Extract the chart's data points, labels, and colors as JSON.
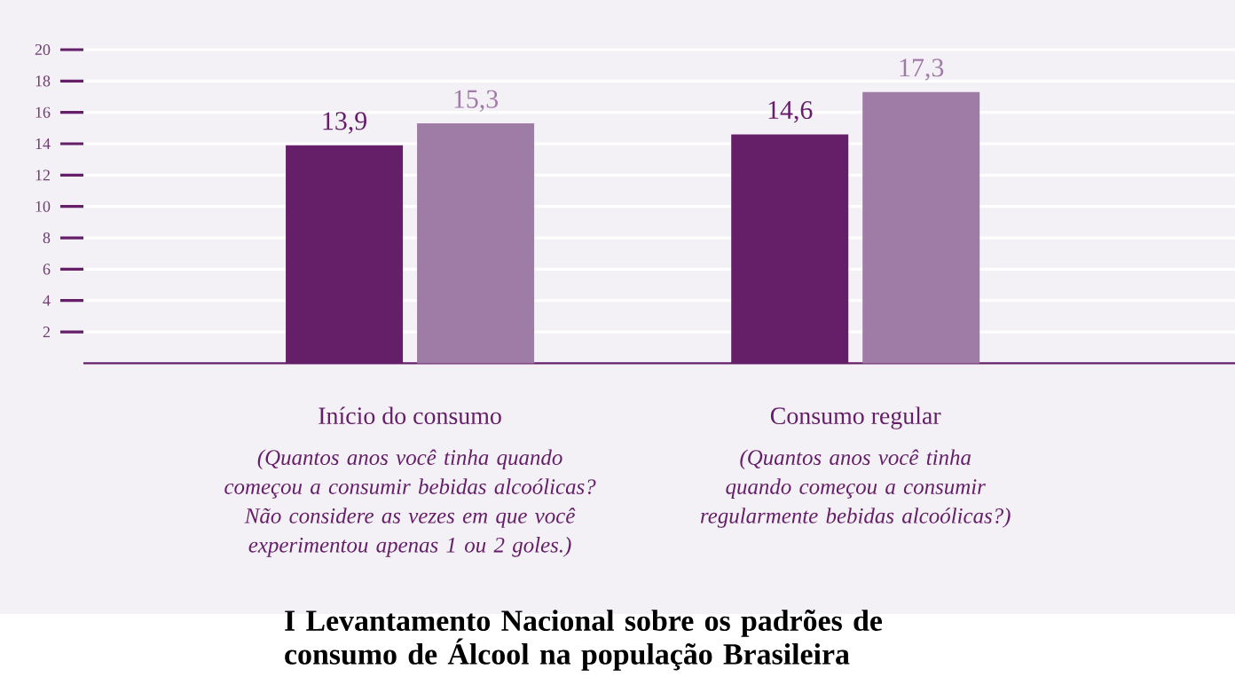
{
  "chart_data": {
    "type": "bar",
    "title": "I Levantamento Nacional sobre os padrões de consumo de Álcool na população Brasileira",
    "categories": [
      "Início do consumo",
      "Consumo regular"
    ],
    "series": [
      {
        "color": "#651f69",
        "values": [
          13.9,
          14.6
        ],
        "value_labels": [
          "13,9",
          "14,6"
        ]
      },
      {
        "color": "#9f7ca6",
        "values": [
          15.3,
          17.3
        ],
        "value_labels": [
          "15,3",
          "17,3"
        ]
      }
    ],
    "ylim": [
      0,
      20
    ],
    "yticks": [
      2,
      4,
      6,
      8,
      10,
      12,
      14,
      16,
      18,
      20
    ],
    "grid": "y",
    "annotations": [
      "(Quantos anos você tinha quando começou a consumir bebidas alcoólicas? Não considere as vezes em que você experimentou apenas 1 ou 2 goles.)",
      "(Quantos anos você tinha quando começou a consumir regularmente bebidas alcoólicas?)"
    ]
  }
}
